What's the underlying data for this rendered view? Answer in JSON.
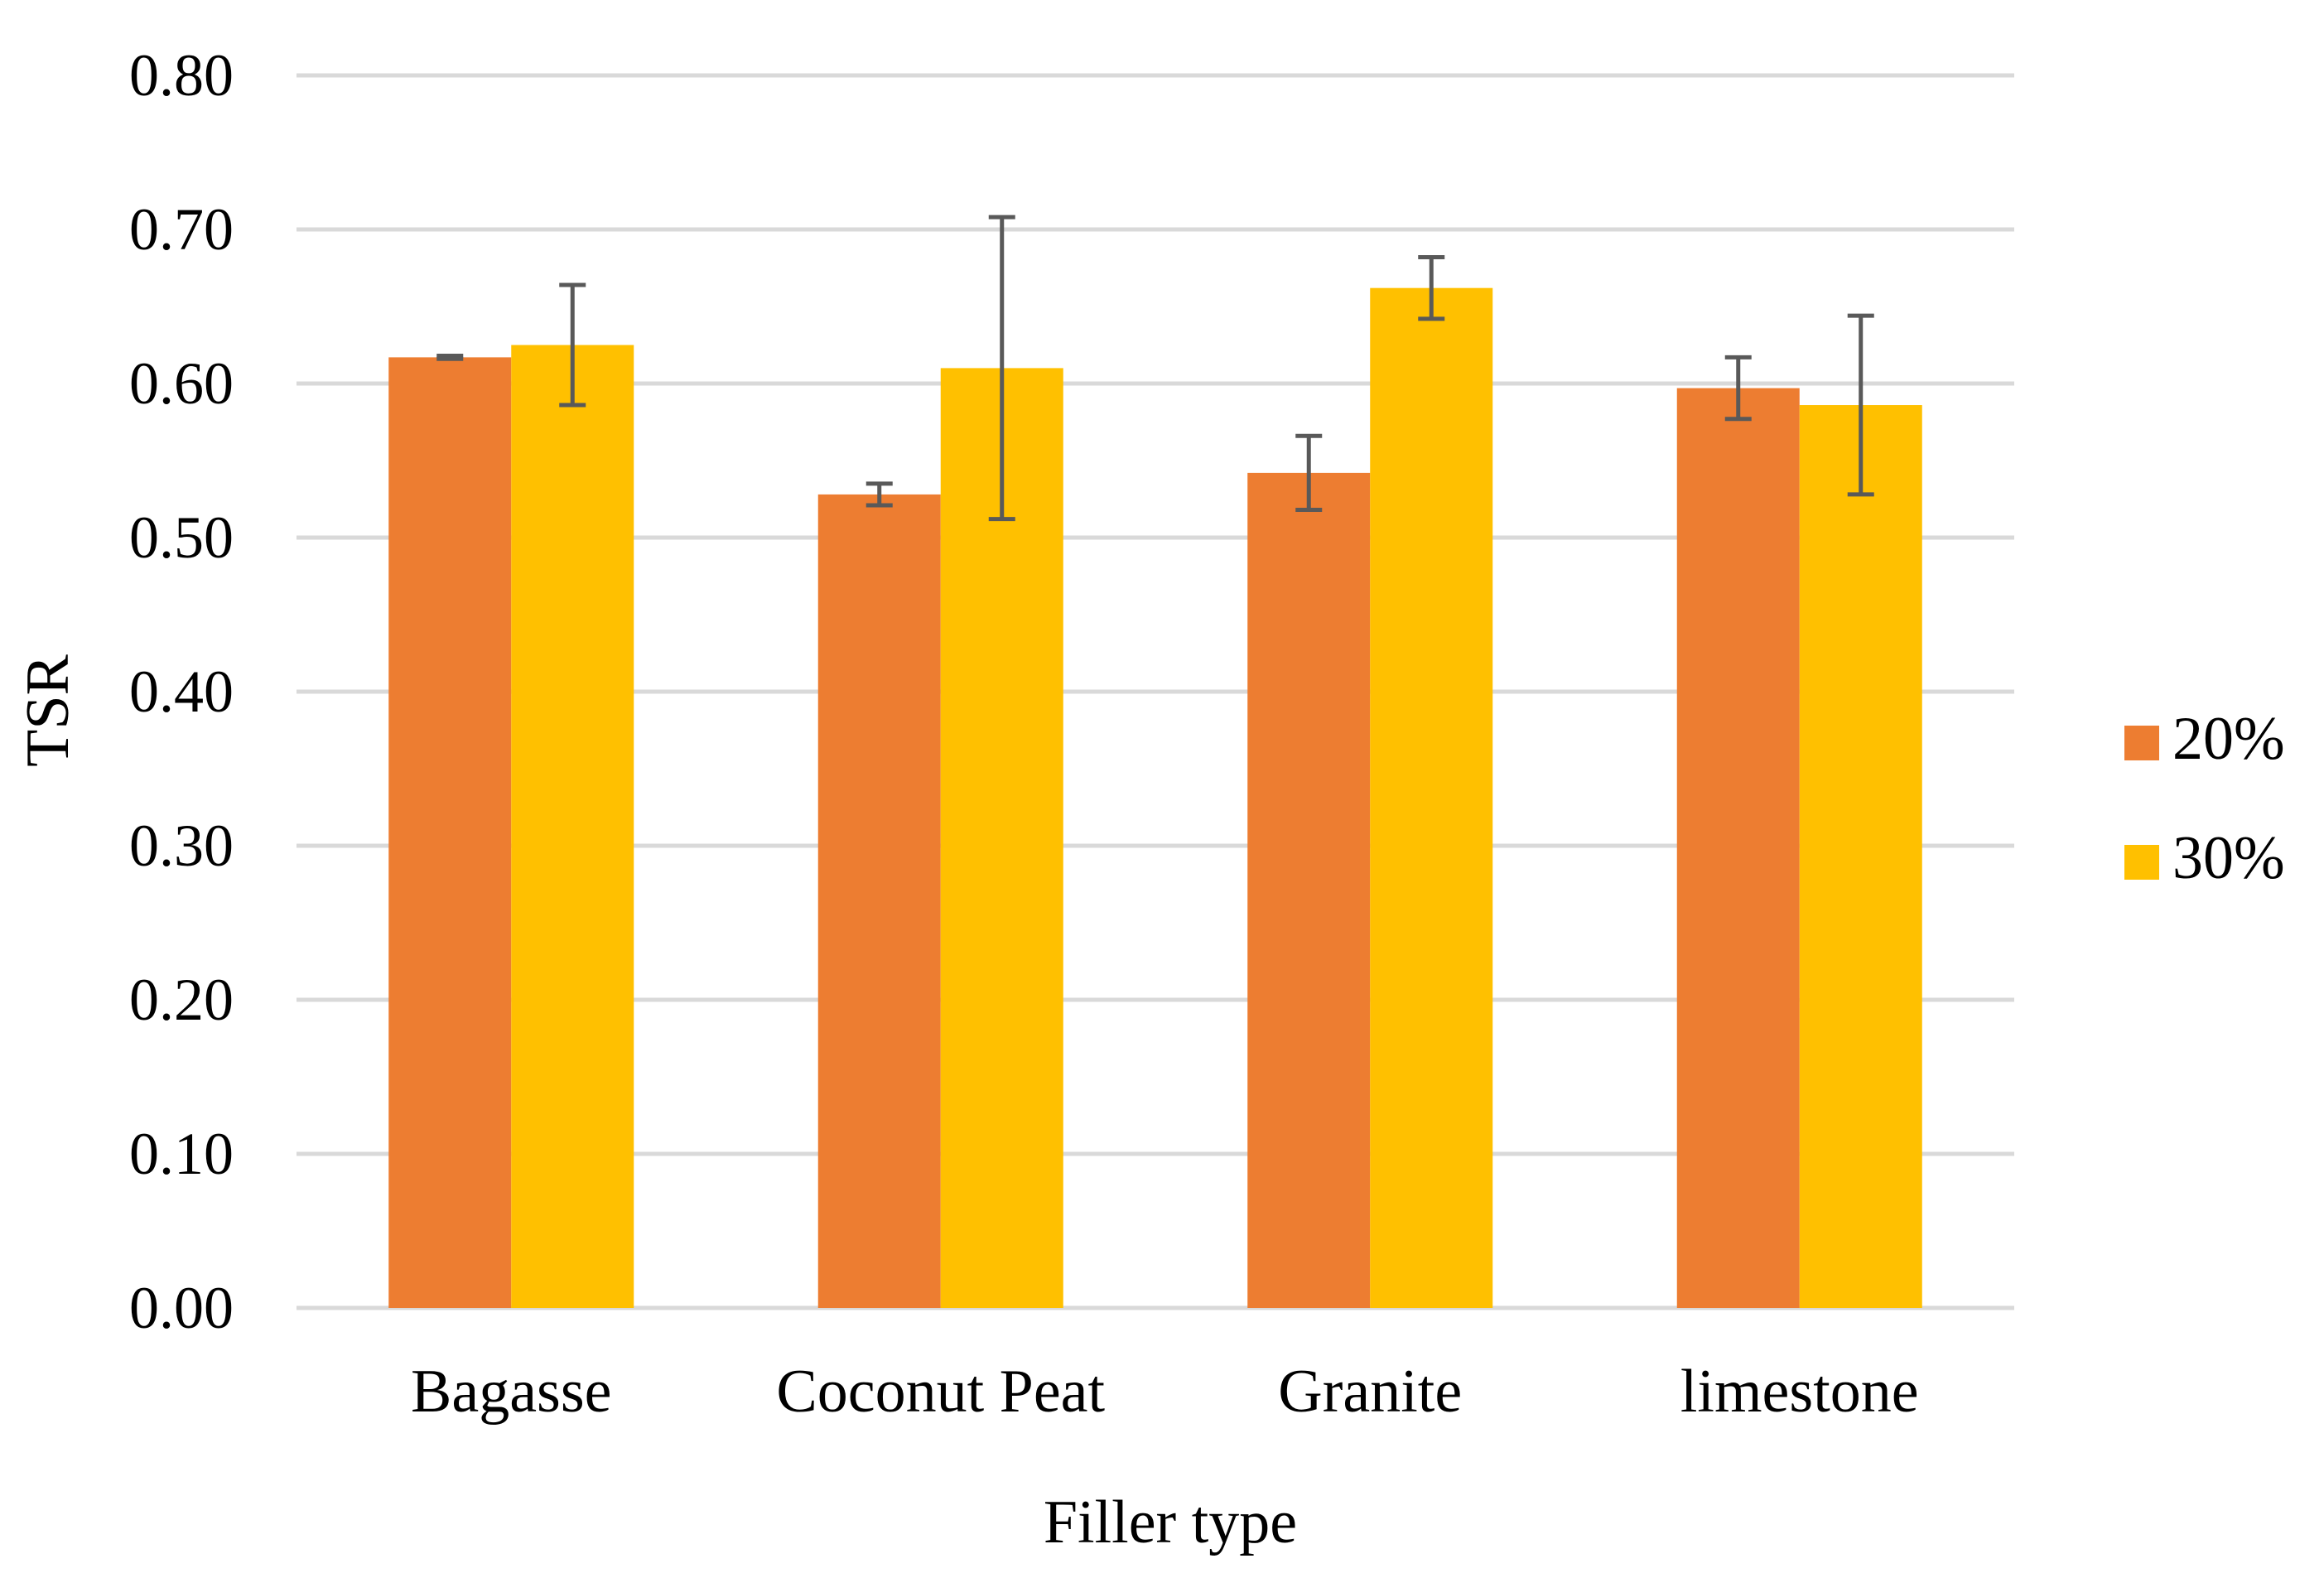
{
  "chart_data": {
    "type": "bar",
    "title": "",
    "xlabel": "Filler type",
    "ylabel": "TSR",
    "ylim": [
      0,
      0.8
    ],
    "ytick_step": 0.1,
    "ytick_labels": [
      "0.00",
      "0.10",
      "0.20",
      "0.30",
      "0.40",
      "0.50",
      "0.60",
      "0.70",
      "0.80"
    ],
    "grid": true,
    "legend_position": "right",
    "categories": [
      "Bagasse",
      "Coconut Peat",
      "Granite",
      "limestone"
    ],
    "series": [
      {
        "name": "20%",
        "color": "#ED7D31",
        "values": [
          0.617,
          0.528,
          0.542,
          0.597
        ],
        "errors": [
          0.001,
          0.007,
          0.024,
          0.02
        ]
      },
      {
        "name": "30%",
        "color": "#FFC000",
        "values": [
          0.625,
          0.61,
          0.662,
          0.586
        ],
        "errors": [
          0.039,
          0.098,
          0.02,
          0.058
        ]
      }
    ],
    "error_bar_color": "#595959"
  }
}
